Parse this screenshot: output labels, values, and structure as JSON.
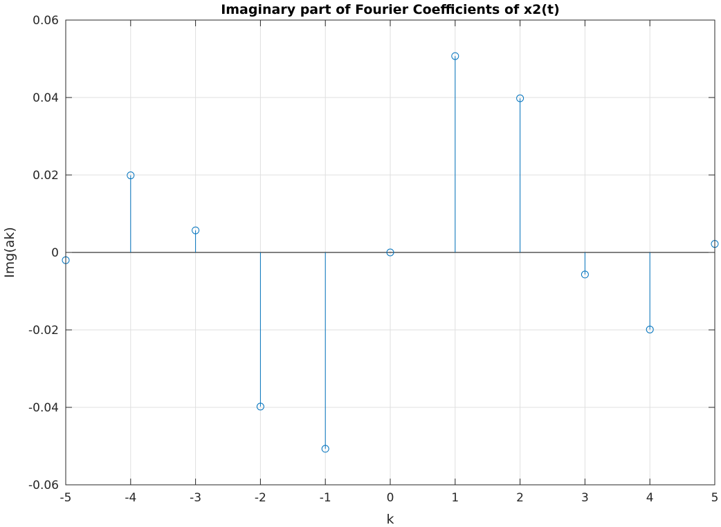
{
  "chart_data": {
    "type": "stem",
    "title": "Imaginary part of Fourier Coefficients of x2(t)",
    "xlabel": "k",
    "ylabel": "Img(ak)",
    "xlim": [
      -5,
      5
    ],
    "ylim": [
      -0.06,
      0.06
    ],
    "xticks": [
      -5,
      -4,
      -3,
      -2,
      -1,
      0,
      1,
      2,
      3,
      4,
      5
    ],
    "xtick_labels": [
      "-5",
      "-4",
      "-3",
      "-2",
      "-1",
      "0",
      "1",
      "2",
      "3",
      "4",
      "5"
    ],
    "yticks": [
      -0.06,
      -0.04,
      -0.02,
      0,
      0.02,
      0.04,
      0.06
    ],
    "ytick_labels": [
      "-0.06",
      "-0.04",
      "-0.02",
      "0",
      "0.02",
      "0.04",
      "0.06"
    ],
    "grid": true,
    "series": [
      {
        "x": [
          -5,
          -4,
          -3,
          -2,
          -1,
          0,
          1,
          2,
          3,
          4,
          5
        ],
        "y": [
          -0.002,
          0.0199,
          0.0057,
          -0.0398,
          -0.0507,
          0,
          0.0507,
          0.0398,
          -0.0057,
          -0.0199,
          0.0022
        ],
        "color": "#0072BD"
      }
    ]
  }
}
